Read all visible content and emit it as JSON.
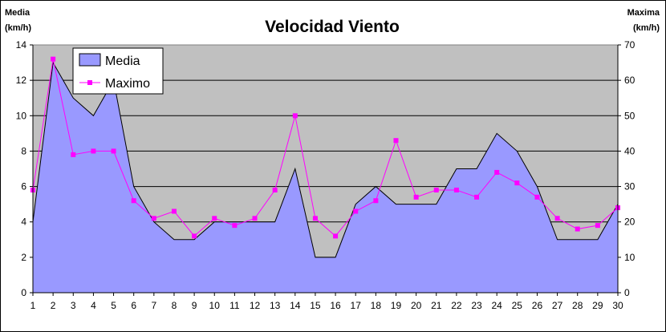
{
  "chart_data": {
    "type": "area",
    "title": "Velocidad Viento",
    "left_axis_label": [
      "Media",
      "(km/h)"
    ],
    "right_axis_label": [
      "Maxima",
      "(km/h)"
    ],
    "x": [
      1,
      2,
      3,
      4,
      5,
      6,
      7,
      8,
      9,
      10,
      11,
      12,
      13,
      14,
      15,
      16,
      17,
      18,
      19,
      20,
      21,
      22,
      23,
      24,
      25,
      26,
      27,
      28,
      29,
      30
    ],
    "x_tick_labels": [
      "1",
      "2",
      "3",
      "4",
      "5",
      "6",
      "7",
      "8",
      "9",
      "10",
      "11",
      "12",
      "13",
      "14",
      "15",
      "16",
      "17",
      "18",
      "19",
      "20",
      "21",
      "22",
      "23",
      "24",
      "25",
      "26",
      "27",
      "28",
      "29",
      "30"
    ],
    "y_left_ticks": [
      "0",
      "2",
      "4",
      "6",
      "8",
      "10",
      "12",
      "14"
    ],
    "y_right_ticks": [
      "0",
      "10",
      "20",
      "30",
      "40",
      "50",
      "60",
      "70"
    ],
    "ylim_left": [
      0,
      14
    ],
    "ylim_right": [
      0,
      70
    ],
    "grid": "horizontal",
    "legend_position": "top-left",
    "series": [
      {
        "name": "Media",
        "type": "area",
        "axis": "left",
        "color": "#9999ff",
        "values": [
          4,
          13,
          11,
          10,
          12,
          6,
          4,
          3,
          3,
          4,
          4,
          4,
          4,
          7,
          2,
          2,
          5,
          6,
          5,
          5,
          5,
          7,
          7,
          9,
          8,
          6,
          3,
          3,
          3,
          5
        ]
      },
      {
        "name": "Maximo",
        "type": "line",
        "axis": "right",
        "color": "#ff00ff",
        "values": [
          29,
          66,
          39,
          40,
          40,
          26,
          21,
          23,
          16,
          21,
          19,
          21,
          29,
          50,
          21,
          16,
          23,
          26,
          43,
          27,
          29,
          29,
          27,
          34,
          31,
          27,
          21,
          18,
          19,
          24
        ]
      }
    ],
    "plot_background": "#c0c0c0"
  }
}
